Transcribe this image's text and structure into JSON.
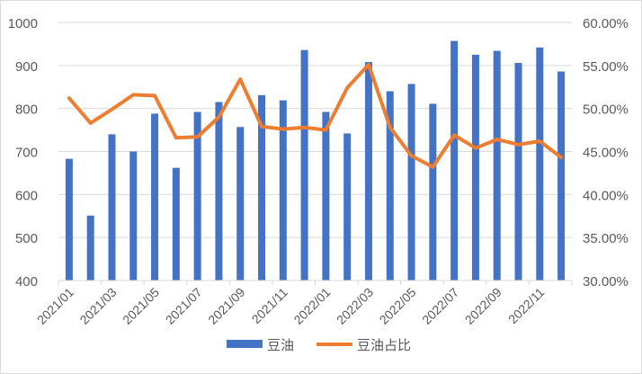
{
  "chart_data": {
    "type": "bar+line",
    "categories": [
      "2021/01",
      "2021/02",
      "2021/03",
      "2021/04",
      "2021/05",
      "2021/06",
      "2021/07",
      "2021/08",
      "2021/09",
      "2021/10",
      "2021/11",
      "2021/12",
      "2022/01",
      "2022/02",
      "2022/03",
      "2022/04",
      "2022/05",
      "2022/06",
      "2022/07",
      "2022/08",
      "2022/09",
      "2022/10",
      "2022/11",
      "2022/12"
    ],
    "tick_labels": [
      "2021/01",
      "2021/03",
      "2021/05",
      "2021/07",
      "2021/09",
      "2021/11",
      "2022/01",
      "2022/03",
      "2022/05",
      "2022/07",
      "2022/09",
      "2022/11"
    ],
    "series": [
      {
        "name": "豆油",
        "type": "bar",
        "axis": "left",
        "color": "#4472C4",
        "values": [
          683,
          551,
          740,
          700,
          788,
          662,
          792,
          815,
          757,
          831,
          819,
          936,
          792,
          742,
          908,
          840,
          857,
          811,
          957,
          925,
          934,
          906,
          942,
          886
        ]
      },
      {
        "name": "豆油占比",
        "type": "line",
        "axis": "right",
        "color": "#ED7D31",
        "values": [
          51.2,
          48.3,
          49.9,
          51.6,
          51.5,
          46.6,
          46.7,
          49.0,
          53.4,
          47.9,
          47.6,
          47.8,
          47.5,
          52.4,
          55.1,
          47.8,
          44.5,
          43.2,
          46.9,
          45.4,
          46.4,
          45.8,
          46.2,
          44.3
        ]
      }
    ],
    "y_left": {
      "range": [
        400,
        1000
      ],
      "ticks": [
        "400",
        "500",
        "600",
        "700",
        "800",
        "900",
        "1000"
      ]
    },
    "y_right": {
      "range": [
        30,
        60
      ],
      "ticks": [
        "30.00%",
        "35.00%",
        "40.00%",
        "45.00%",
        "50.00%",
        "55.00%",
        "60.00%"
      ]
    },
    "grid": true,
    "legend": "bottom"
  }
}
